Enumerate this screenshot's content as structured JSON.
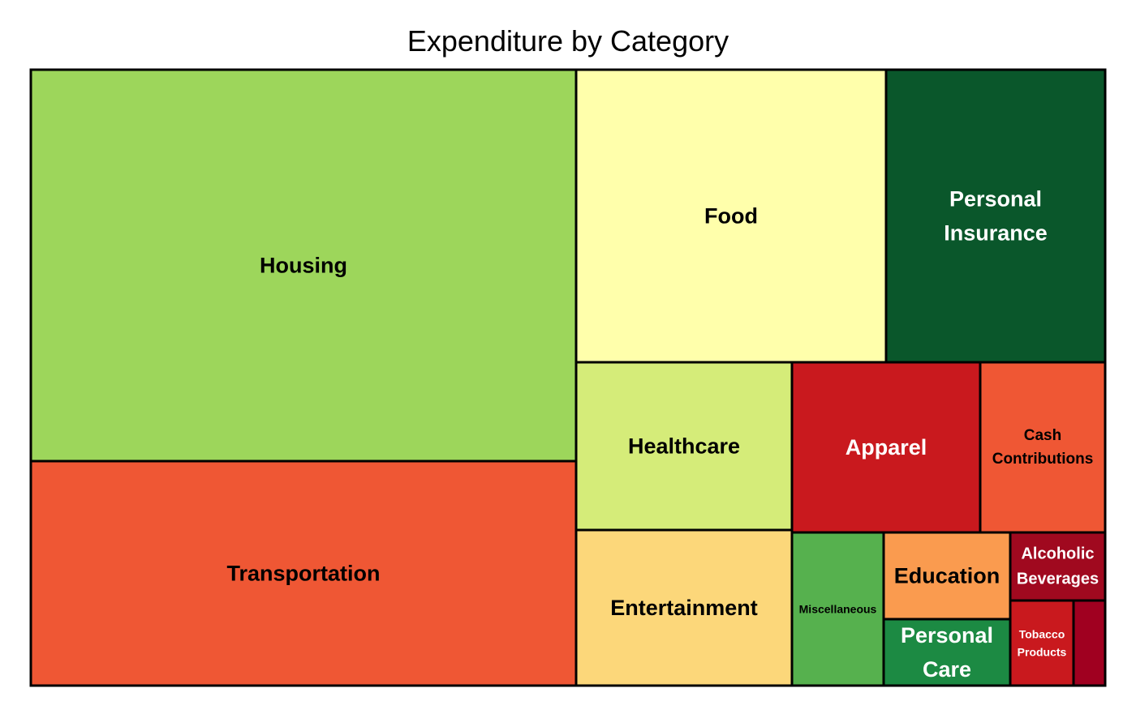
{
  "chart_data": {
    "type": "treemap",
    "title": "Expenditure by Category",
    "items": [
      {
        "label": "Housing",
        "value": 33.8,
        "color": "#9dd65b",
        "text_color": "#000000"
      },
      {
        "label": "Transportation",
        "value": 19.0,
        "color": "#ef5734",
        "text_color": "#000000"
      },
      {
        "label": "Food",
        "value": 13.7,
        "color": "#ffffab",
        "text_color": "#000000"
      },
      {
        "label": "Personal Insurance",
        "value": 11.0,
        "color": "#0a572b",
        "text_color": "#ffffff"
      },
      {
        "label": "Healthcare",
        "value": 5.5,
        "color": "#d5ec79",
        "text_color": "#000000"
      },
      {
        "label": "Entertainment",
        "value": 4.9,
        "color": "#fcd77a",
        "text_color": "#000000"
      },
      {
        "label": "Apparel",
        "value": 4.8,
        "color": "#c9191e",
        "text_color": "#ffffff"
      },
      {
        "label": "Cash Contributions",
        "value": 3.2,
        "color": "#ef5734",
        "text_color": "#000000"
      },
      {
        "label": "Miscellaneous",
        "value": 1.5,
        "color": "#56b14e",
        "text_color": "#000000"
      },
      {
        "label": "Education",
        "value": 1.1,
        "color": "#fa9b4f",
        "text_color": "#000000"
      },
      {
        "label": "Personal Care",
        "value": 1.0,
        "color": "#1c8a43",
        "text_color": "#ffffff"
      },
      {
        "label": "Alcoholic Beverages",
        "value": 0.8,
        "color": "#a0091f",
        "text_color": "#ffffff"
      },
      {
        "label": "Tobacco Products",
        "value": 0.5,
        "color": "#c9191e",
        "text_color": "#ffffff"
      },
      {
        "label": "",
        "value": 0.2,
        "color": "#a00020",
        "text_color": "#ffffff"
      }
    ]
  }
}
